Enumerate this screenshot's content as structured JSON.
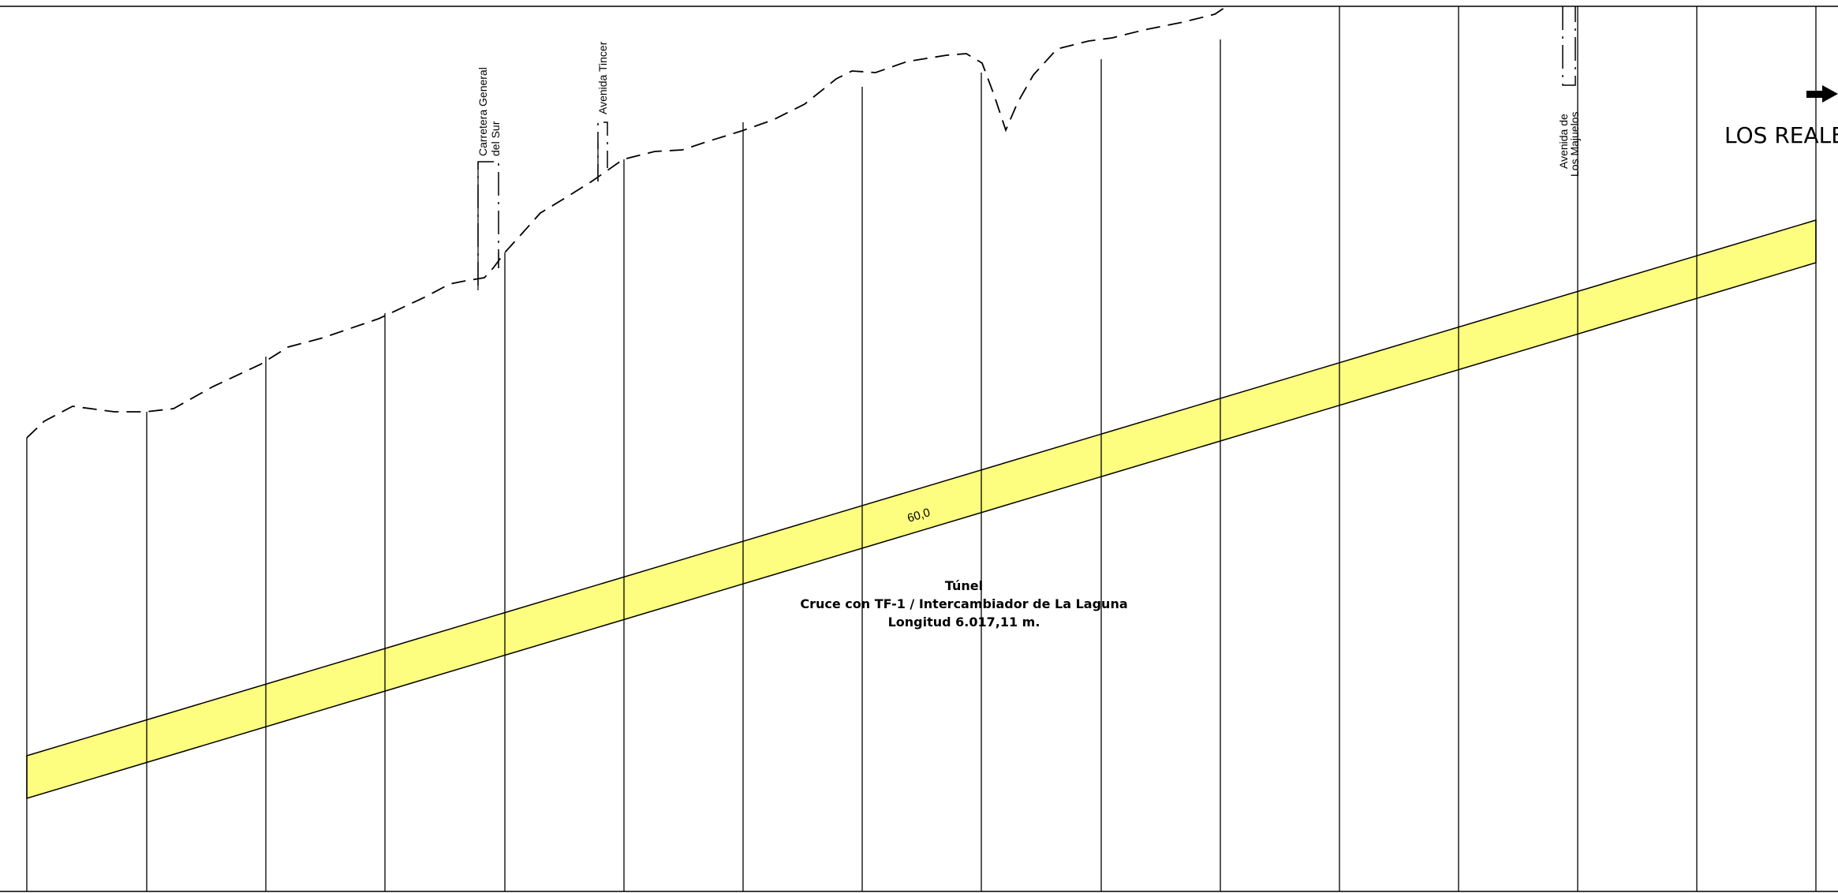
{
  "tunnel": {
    "slope_label": "60,0",
    "title": "Túnel",
    "subtitle": "Cruce con TF-1 / Intercambiador de La Laguna",
    "length": "Longitud 6.017,11 m."
  },
  "crossings": {
    "carretera_line1": "Carretera General",
    "carretera_line2": "del Sur",
    "tincer": "Avenida Tincer",
    "majuelos_line1": "Avenida de",
    "majuelos_line2": "Los Majuelos"
  },
  "destination": "LOS REALEJOS",
  "colors": {
    "tunnel_fill": "#fdfd80",
    "line": "#000000"
  }
}
